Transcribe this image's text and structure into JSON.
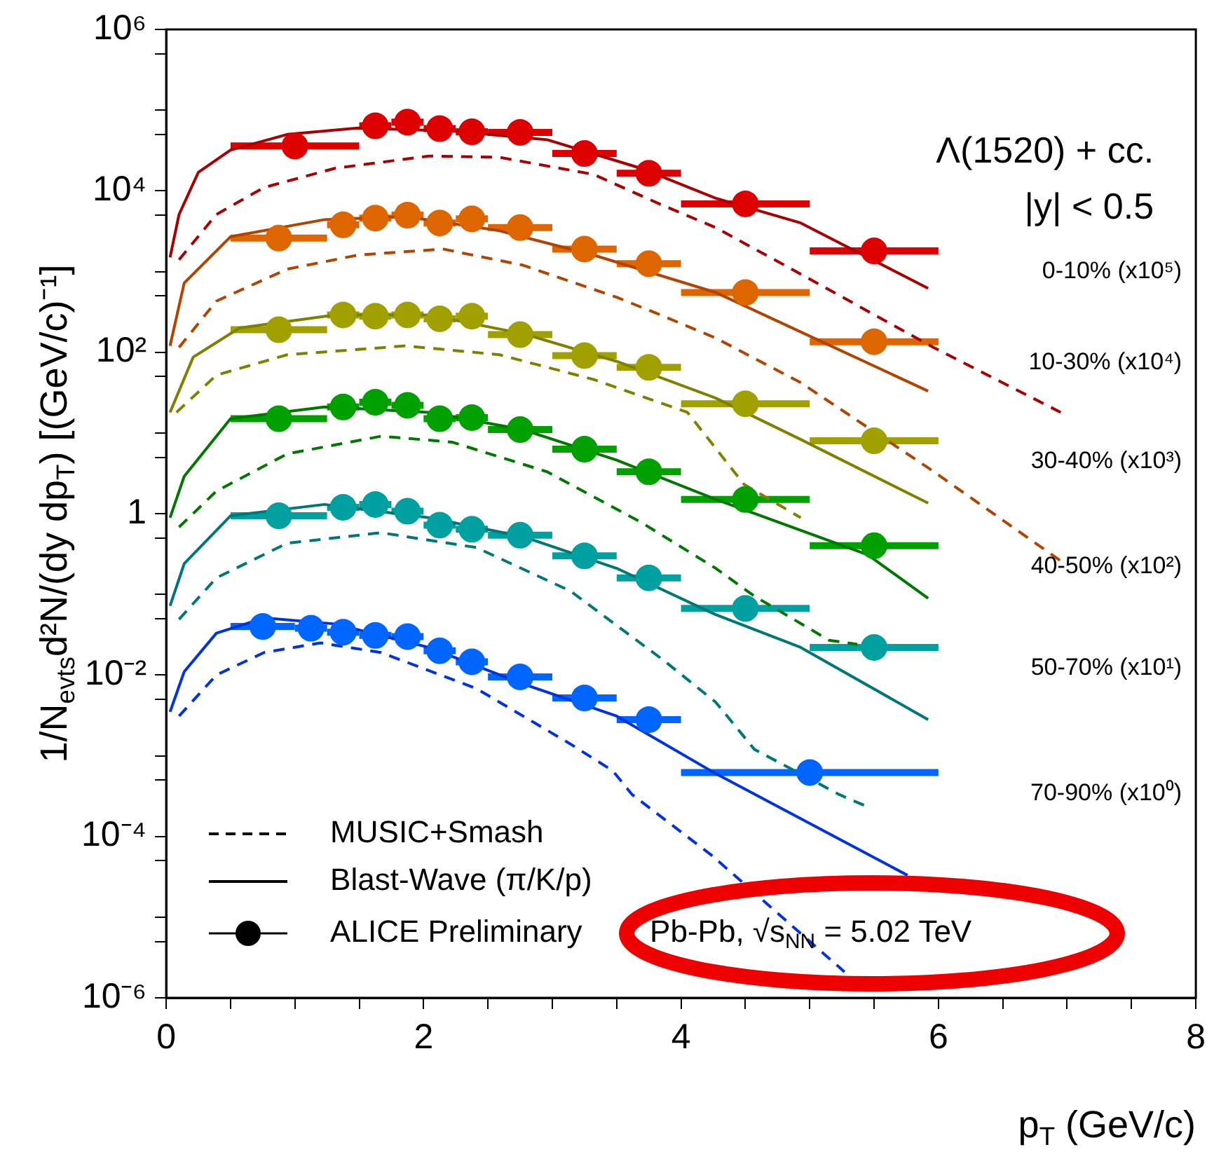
{
  "chart_data": {
    "type": "scatter",
    "xlabel": "p$_{T}$ (GeV/c)",
    "ylabel": "1/N$_{evts}$d²N/(dy dp$_{T}$) [(GeV/c)⁻¹]",
    "log": "y",
    "grid": false,
    "legend": false,
    "xlim": [
      0,
      8
    ],
    "xticks": [
      0,
      {
        "value": 0.5,
        "label": null
      },
      {
        "value": 1,
        "label": null
      },
      {
        "value": 1.5,
        "label": null
      },
      2,
      {
        "value": 2.5,
        "label": null
      },
      {
        "value": 3,
        "label": null
      },
      {
        "value": 3.5,
        "label": null
      },
      4,
      {
        "value": 4.5,
        "label": null
      },
      {
        "value": 5,
        "label": null
      },
      {
        "value": 5.5,
        "label": null
      },
      6,
      {
        "value": 6.5,
        "label": null
      },
      {
        "value": 7,
        "label": null
      },
      {
        "value": 7.5,
        "label": null
      },
      8
    ],
    "ylim": [
      1e-06,
      1000000
    ],
    "yticks": [
      {
        "value": 1e-06,
        "label": "10⁻⁶"
      },
      {
        "value": 5e-06,
        "label": null
      },
      {
        "value": 1e-05,
        "label": null
      },
      {
        "value": 5e-05,
        "label": null
      },
      {
        "value": 0.0001,
        "label": "10⁻⁴"
      },
      {
        "value": 0.0005,
        "label": null
      },
      {
        "value": 0.001,
        "label": null
      },
      {
        "value": 0.005,
        "label": null
      },
      {
        "value": 0.01,
        "label": "10⁻²"
      },
      {
        "value": 0.05,
        "label": null
      },
      {
        "value": 0.1,
        "label": null
      },
      {
        "value": 0.5,
        "label": null
      },
      1,
      {
        "value": 5,
        "label": null
      },
      {
        "value": 10,
        "label": null
      },
      {
        "value": 50,
        "label": null
      },
      {
        "value": 100,
        "label": "10²"
      },
      {
        "value": 500,
        "label": null
      },
      {
        "value": 1000,
        "label": null
      },
      {
        "value": 5000,
        "label": null
      },
      {
        "value": 10000,
        "label": "10⁴"
      },
      {
        "value": 50000,
        "label": null
      },
      {
        "value": 100000,
        "label": null
      },
      {
        "value": 500000,
        "label": null
      },
      {
        "value": 1000000,
        "label": "10⁶"
      }
    ],
    "annotations": [
      "Λ(1520) + cc.",
      "|y| < 0.5",
      "MUSIC+Smash",
      "Blast-Wave (π/K/p)",
      "ALICE Preliminary",
      "Pb-Pb, √s$_{NN}$ = 5.02 TeV"
    ],
    "series": [
      {
        "type": "line",
        "line_style": "solid",
        "marker": "none",
        "color": "#a80000",
        "x": [
          0.03,
          0.1,
          0.25,
          0.5,
          0.94,
          1.49,
          2.22,
          2.96,
          3.69,
          4.27,
          4.93,
          5.45,
          5.92
        ],
        "values": [
          1500,
          5100,
          17000,
          32000,
          50000,
          60000,
          55000,
          43000,
          19000,
          8100,
          4000,
          null,
          620
        ]
      },
      {
        "type": "line",
        "line_style": "dashed",
        "marker": "none",
        "color": "#a80000",
        "x": [
          0.1,
          0.39,
          0.76,
          1.31,
          2.04,
          2.59,
          3.32,
          3.84,
          4.27,
          4.93,
          5.96,
          6.95
        ],
        "values": [
          1400,
          5100,
          11000,
          19000,
          27000,
          26000,
          16000,
          6800,
          3500,
          930,
          115,
          18
        ]
      },
      {
        "type": "line",
        "line_style": "solid",
        "marker": "none",
        "color": "#b04400",
        "x": [
          0.03,
          0.14,
          0.5,
          1.23,
          1.86,
          2.59,
          3.32,
          4.27,
          5.45,
          5.92
        ],
        "values": [
          120,
          720,
          2700,
          4400,
          4800,
          3200,
          1600,
          550,
          null,
          33
        ]
      },
      {
        "type": "line",
        "line_style": "dashed",
        "marker": "none",
        "color": "#b04400",
        "x": [
          0.1,
          0.39,
          0.94,
          1.49,
          2.15,
          2.77,
          3.5,
          3.84,
          4.27,
          4.93,
          5.92,
          6.95
        ],
        "values": [
          115,
          430,
          1070,
          1600,
          1900,
          1200,
          480,
          290,
          150,
          42,
          3.7,
          0.26
        ]
      },
      {
        "type": "line",
        "line_style": "solid",
        "marker": "none",
        "color": "#808000",
        "x": [
          0.03,
          0.21,
          0.57,
          1.31,
          2.04,
          2.77,
          3.5,
          4.27,
          4.93,
          5.92
        ],
        "values": [
          18,
          87,
          200,
          290,
          290,
          170,
          77,
          27,
          8.3,
          1.35
        ]
      },
      {
        "type": "line",
        "line_style": "dashed",
        "marker": "none",
        "color": "#808000",
        "x": [
          0.08,
          0.39,
          0.94,
          1.86,
          2.59,
          3.32,
          4.05,
          4.49,
          4.93
        ],
        "values": [
          18,
          52,
          93,
          120,
          93,
          46,
          18,
          2.3,
          0.89
        ]
      },
      {
        "type": "line",
        "line_style": "solid",
        "marker": "none",
        "color": "#007700",
        "x": [
          0.03,
          0.14,
          0.5,
          1.23,
          2.04,
          2.77,
          3.5,
          4.27,
          5.45,
          5.92
        ],
        "values": [
          0.89,
          2.9,
          15,
          21,
          18,
          11,
          4.6,
          1.5,
          0.31,
          0.089
        ]
      },
      {
        "type": "line",
        "line_style": "dashed",
        "marker": "none",
        "color": "#007700",
        "x": [
          0.1,
          0.39,
          0.94,
          1.67,
          2.22,
          2.96,
          3.69,
          4.27,
          4.57,
          5.15,
          5.37
        ],
        "values": [
          0.68,
          1.9,
          5.5,
          9.1,
          7.7,
          3.3,
          0.78,
          0.21,
          0.095,
          0.027,
          0.024
        ]
      },
      {
        "type": "line",
        "line_style": "solid",
        "marker": "none",
        "color": "#007777",
        "x": [
          0.03,
          0.14,
          0.5,
          1.23,
          2.04,
          2.77,
          3.5,
          4.27,
          4.93,
          5.92
        ],
        "values": [
          0.072,
          0.24,
          0.94,
          1.3,
          0.89,
          0.52,
          0.21,
          0.056,
          0.022,
          0.0028
        ]
      },
      {
        "type": "line",
        "line_style": "dashed",
        "marker": "none",
        "color": "#007777",
        "x": [
          0.1,
          0.39,
          0.94,
          1.67,
          2.41,
          3.14,
          3.87,
          4.27,
          4.57,
          5.23,
          5.43
        ],
        "values": [
          0.049,
          0.16,
          0.43,
          0.58,
          0.38,
          0.11,
          0.015,
          0.0046,
          0.0012,
          0.00033,
          0.00024
        ]
      },
      {
        "type": "line",
        "line_style": "solid",
        "marker": "none",
        "color": "#0033dd",
        "x": [
          0.03,
          0.14,
          0.39,
          0.76,
          1.31,
          2.04,
          2.77,
          3.5,
          4.27,
          5.76
        ],
        "values": [
          0.0035,
          0.011,
          0.033,
          0.051,
          0.043,
          0.022,
          0.0078,
          0.0031,
          0.0006,
          3.3e-05
        ]
      },
      {
        "type": "line",
        "line_style": "dashed",
        "marker": "none",
        "color": "#0033dd",
        "x": [
          0.1,
          0.39,
          0.76,
          1.2,
          1.67,
          2.41,
          3.14,
          3.47,
          3.62,
          4.24,
          5.27
        ],
        "values": [
          0.0031,
          0.01,
          0.019,
          0.025,
          0.019,
          0.0068,
          0.0014,
          0.00065,
          0.00033,
          5.8e-05,
          2.1e-06
        ]
      },
      {
        "marker": "circle",
        "name": "0-10% (x10⁵)",
        "color": "#dd0000",
        "x": [
          1.0,
          1.625,
          1.875,
          2.125,
          2.375,
          2.75,
          3.25,
          3.75,
          4.5,
          5.5
        ],
        "xerrors": [
          0.5,
          0.125,
          0.125,
          0.125,
          0.125,
          0.25,
          0.25,
          0.25,
          0.5,
          0.5
        ],
        "values": [
          36000,
          64000,
          71000,
          59000,
          54000,
          53000,
          29000,
          16500,
          6900,
          1800
        ]
      },
      {
        "marker": "circle",
        "name": "10-30% (x10⁴)",
        "color": "#dd6600",
        "x": [
          0.875,
          1.375,
          1.625,
          1.875,
          2.125,
          2.375,
          2.75,
          3.25,
          3.75,
          4.5,
          5.5
        ],
        "xerrors": [
          0.375,
          0.125,
          0.125,
          0.125,
          0.125,
          0.125,
          0.25,
          0.25,
          0.25,
          0.5,
          0.5
        ],
        "values": [
          2600,
          3800,
          4600,
          5000,
          4000,
          4500,
          3500,
          1900,
          1250,
          550,
          135
        ]
      },
      {
        "marker": "circle",
        "name": "30-40% (x10³)",
        "color": "#a0a000",
        "x": [
          0.875,
          1.375,
          1.625,
          1.875,
          2.125,
          2.375,
          2.75,
          3.25,
          3.75,
          4.5,
          5.5
        ],
        "xerrors": [
          0.375,
          0.125,
          0.125,
          0.125,
          0.125,
          0.125,
          0.25,
          0.25,
          0.25,
          0.5,
          0.5
        ],
        "values": [
          190,
          290,
          280,
          290,
          260,
          280,
          165,
          91,
          65,
          23,
          8.0
        ]
      },
      {
        "marker": "circle",
        "name": "40-50% (x10²)",
        "color": "#00a000",
        "x": [
          0.875,
          1.375,
          1.625,
          1.875,
          2.125,
          2.375,
          2.75,
          3.25,
          3.75,
          4.5,
          5.5
        ],
        "xerrors": [
          0.375,
          0.125,
          0.125,
          0.125,
          0.125,
          0.125,
          0.25,
          0.25,
          0.25,
          0.5,
          0.5
        ],
        "values": [
          15,
          21,
          24,
          22,
          15,
          15.5,
          11,
          6.3,
          3.3,
          1.5,
          0.4
        ]
      },
      {
        "marker": "circle",
        "name": "50-70% (x10¹)",
        "color": "#00a0a0",
        "x": [
          0.875,
          1.375,
          1.625,
          1.875,
          2.125,
          2.375,
          2.75,
          3.25,
          3.75,
          4.5,
          5.5
        ],
        "xerrors": [
          0.375,
          0.125,
          0.125,
          0.125,
          0.125,
          0.125,
          0.25,
          0.25,
          0.25,
          0.5,
          0.5
        ],
        "values": [
          0.94,
          1.2,
          1.3,
          1.07,
          0.72,
          0.64,
          0.54,
          0.3,
          0.16,
          0.067,
          0.022
        ]
      },
      {
        "marker": "circle",
        "name": "70-90% (x10⁰)",
        "color": "#0066ff",
        "x": [
          0.75,
          1.125,
          1.375,
          1.625,
          1.875,
          2.125,
          2.375,
          2.75,
          3.25,
          3.75,
          5.0
        ],
        "xerrors": [
          0.25,
          0.125,
          0.125,
          0.125,
          0.125,
          0.125,
          0.125,
          0.25,
          0.25,
          0.25,
          1.0
        ],
        "values": [
          0.04,
          0.038,
          0.034,
          0.031,
          0.03,
          0.02,
          0.0146,
          0.0095,
          0.0052,
          0.0028,
          0.00062
        ]
      }
    ]
  }
}
